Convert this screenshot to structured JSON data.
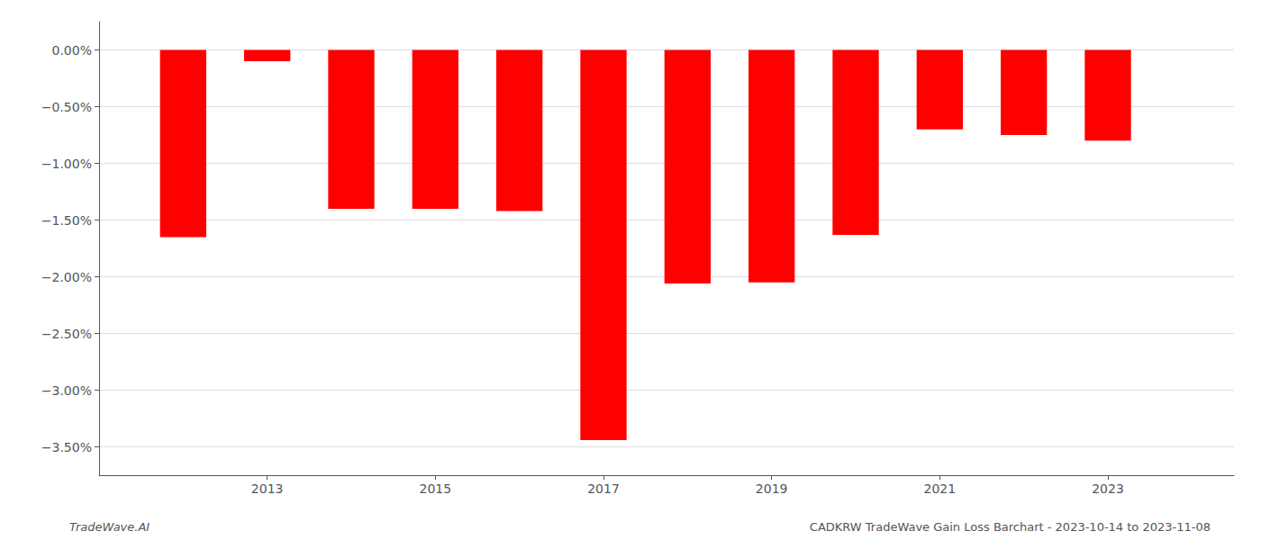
{
  "chart_data": {
    "type": "bar",
    "x": [
      2012,
      2013,
      2014,
      2015,
      2016,
      2017,
      2018,
      2019,
      2020,
      2021,
      2022,
      2023
    ],
    "values": [
      -1.65,
      -0.1,
      -1.4,
      -1.4,
      -1.42,
      -3.44,
      -2.06,
      -2.05,
      -1.63,
      -0.7,
      -0.75,
      -0.8
    ],
    "color": "#ff0000",
    "xlim": [
      2011.0,
      2024.5
    ],
    "xticks": [
      2013,
      2015,
      2017,
      2019,
      2021,
      2023
    ],
    "ylim": [
      -3.75,
      0.25
    ],
    "yticks": [
      {
        "value": 0.0,
        "label": "0.00%"
      },
      {
        "value": -0.5,
        "label": "−0.50%"
      },
      {
        "value": -1.0,
        "label": "−1.00%"
      },
      {
        "value": -1.5,
        "label": "−1.50%"
      },
      {
        "value": -2.0,
        "label": "−2.00%"
      },
      {
        "value": -2.5,
        "label": "−2.50%"
      },
      {
        "value": -3.0,
        "label": "−3.00%"
      },
      {
        "value": -3.5,
        "label": "−3.50%"
      }
    ],
    "grid": true,
    "annotations": [
      "TradeWave.AI",
      "CADKRW TradeWave Gain Loss Barchart - 2023-10-14 to 2023-11-08"
    ]
  }
}
